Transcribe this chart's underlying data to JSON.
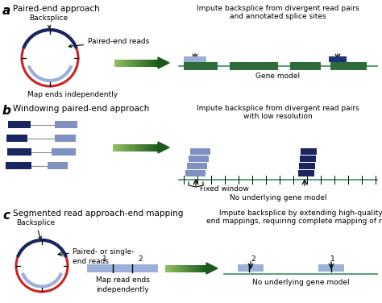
{
  "bg_color": "#ffffff",
  "dark_blue": "#1f3278",
  "light_blue_arc": "#9ab0d8",
  "red": "#cc2222",
  "dark_green_exon": "#2d6b3a",
  "teal_line": "#4a9a6a",
  "dark_navy": "#1a2560",
  "slate_blue": "#8090c0",
  "panel_a_title": "Paired-end approach",
  "panel_b_title": "Windowing paired-end approach",
  "panel_c_title": "Segmented read approach-end mapping",
  "label_a": "a",
  "label_b": "b",
  "label_c": "c",
  "grad_green_light": [
    144,
    192,
    96
  ],
  "grad_green_dark": [
    26,
    90,
    26
  ]
}
